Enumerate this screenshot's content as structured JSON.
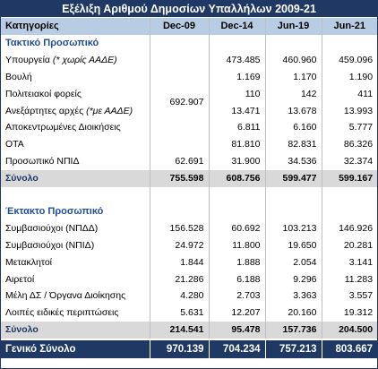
{
  "title": "Εξέλιξη Αριθμού Δημοσίων Υπαλλήλων 2009-21",
  "headers": [
    "Κατηγορίες",
    "Dec-09",
    "Dec-14",
    "Jun-19",
    "Jun-21"
  ],
  "section1": {
    "label": "Τακτικό Προσωπικό",
    "merged_dec09": "692.907",
    "rows": [
      {
        "label": "Υπουργεία",
        "note": "(* χωρίς ΑΑΔΕ)",
        "v14": "473.485",
        "v19": "460.960",
        "v21": "459.096"
      },
      {
        "label": "Βουλή",
        "note": "",
        "v14": "1.169",
        "v19": "1.170",
        "v21": "1.190"
      },
      {
        "label": "Πολιτειακοί φορείς",
        "note": "",
        "v14": "110",
        "v19": "142",
        "v21": "411"
      },
      {
        "label": "Ανεξάρτητες αρχές",
        "note": "(*με ΑΑΔΕ)",
        "v14": "13.471",
        "v19": "13.678",
        "v21": "13.993"
      },
      {
        "label": "Αποκεντρωμένες Διοικήσεις",
        "note": "",
        "v14": "6.811",
        "v19": "6.160",
        "v21": "5.777"
      },
      {
        "label": "ΟΤΑ",
        "note": "",
        "v14": "81.810",
        "v19": "82.831",
        "v21": "86.326"
      }
    ],
    "npid": {
      "label": "Προσωπικό ΝΠΙΔ",
      "v09": "62.691",
      "v14": "31.900",
      "v19": "34.536",
      "v21": "32.374"
    },
    "total": {
      "label": "Σύνολο",
      "v09": "755.598",
      "v14": "608.756",
      "v19": "599.477",
      "v21": "599.167"
    }
  },
  "section2": {
    "label": "Έκτακτο Προσωπικό",
    "rows": [
      {
        "label": "Συμβασιούχοι (ΝΠΔΔ)",
        "v09": "156.528",
        "v14": "60.692",
        "v19": "103.213",
        "v21": "146.926"
      },
      {
        "label": "Συμβασιούχοι (ΝΠΙΔ)",
        "v09": "24.972",
        "v14": "11.800",
        "v19": "19.650",
        "v21": "20.281"
      },
      {
        "label": "Μετακλητοί",
        "v09": "1.844",
        "v14": "1.888",
        "v19": "2.054",
        "v21": "3.141"
      },
      {
        "label": "Αιρετοί",
        "v09": "21.286",
        "v14": "6.188",
        "v19": "9.296",
        "v21": "11.283"
      },
      {
        "label": "Μέλη ΔΣ / Όργανα Διοίκησης",
        "v09": "4.280",
        "v14": "2.703",
        "v19": "3.363",
        "v21": "3.557"
      },
      {
        "label": "Λοιπές ειδικές περιπτώσεις",
        "v09": "5.631",
        "v14": "12.207",
        "v19": "20.160",
        "v21": "19.312"
      }
    ],
    "total": {
      "label": "Σύνολο",
      "v09": "214.541",
      "v14": "95.478",
      "v19": "157.736",
      "v21": "204.500"
    }
  },
  "grand_total": {
    "label": "Γενικό Σύνολο",
    "v09": "970.139",
    "v14": "704.234",
    "v19": "757.213",
    "v21": "803.667"
  }
}
